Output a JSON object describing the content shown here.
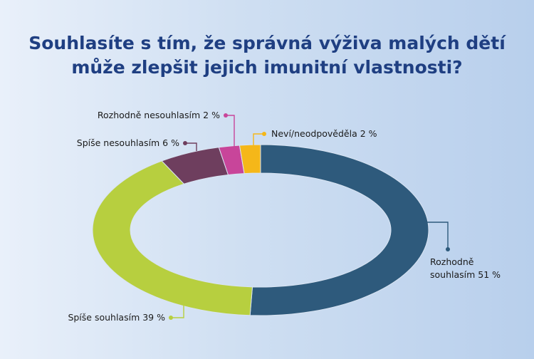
{
  "chart_data": {
    "type": "pie",
    "variant": "donut",
    "title_lines": [
      "Souhlasíte s tím, že správná výživa malých dětí",
      "může zlepšit jejich imunitní vlastnosti?"
    ],
    "slices": [
      {
        "name": "Rozhodně souhlasím",
        "value": 51,
        "label_lines": [
          "Rozhodně",
          "souhlasím 51 %"
        ],
        "color": "#2e5a7c"
      },
      {
        "name": "Spíše souhlasím",
        "value": 39,
        "label_lines": [
          "Spíše souhlasím 39 %"
        ],
        "color": "#b7cf3f"
      },
      {
        "name": "Spíše nesouhlasím",
        "value": 6,
        "label_lines": [
          "Spíše nesouhlasím 6 %"
        ],
        "color": "#6e3e5e"
      },
      {
        "name": "Rozhodně nesouhlasím",
        "value": 2,
        "label_lines": [
          "Rozhodně nesouhlasím 2 %"
        ],
        "color": "#c8459a"
      },
      {
        "name": "Neví/neodpověděla",
        "value": 2,
        "label_lines": [
          "Neví/neodpověděla 2 %"
        ],
        "color": "#f5b719"
      }
    ]
  }
}
